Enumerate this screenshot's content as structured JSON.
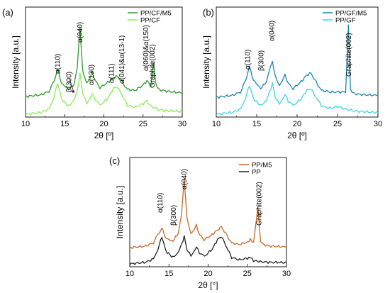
{
  "chart_data": [
    {
      "type": "line",
      "panel_label": "(a)",
      "xlabel": "2θ [º]",
      "ylabel": "Intensity [a.u.]",
      "xlim": [
        10,
        30
      ],
      "xticks": [
        "10",
        "15",
        "20",
        "25",
        "30"
      ],
      "legend_position": "top-right",
      "annotations": [
        "α(110)",
        "β(300)",
        "α(040)",
        "α(130)",
        "α(111)",
        "α(041)&α(13-1)",
        "α(060)&α(150)",
        "Graphite(002)"
      ],
      "series": [
        {
          "name": "PP/CF/M5",
          "color": "#2e9a2e",
          "x": [
            10,
            12,
            13,
            13.6,
            14.1,
            14.6,
            15.5,
            16.2,
            16.6,
            16.95,
            17.3,
            17.8,
            18.2,
            18.5,
            18.9,
            19.5,
            20.5,
            21.2,
            21.7,
            22.2,
            23,
            24,
            25,
            25.5,
            26,
            26.35,
            26.6,
            27,
            28,
            30
          ],
          "y": [
            1.0,
            1.1,
            1.3,
            1.8,
            2.55,
            1.75,
            1.4,
            1.7,
            2.6,
            4.95,
            2.4,
            1.8,
            2.0,
            2.4,
            1.9,
            1.5,
            1.8,
            2.05,
            2.15,
            1.9,
            1.4,
            1.35,
            1.65,
            1.9,
            1.6,
            2.9,
            1.7,
            1.4,
            1.3,
            1.2
          ]
        },
        {
          "name": "PP/CF",
          "color": "#88ee55",
          "x": [
            10,
            12,
            13,
            13.6,
            14.1,
            14.6,
            15.5,
            16.2,
            16.6,
            16.95,
            17.3,
            17.8,
            18.2,
            18.5,
            18.9,
            19.5,
            20.5,
            21.2,
            21.7,
            22.2,
            23,
            24,
            25,
            25.5,
            26,
            27,
            28,
            30
          ],
          "y": [
            0.0,
            0.1,
            0.3,
            0.9,
            1.8,
            0.85,
            0.45,
            0.8,
            1.3,
            2.3,
            1.2,
            0.6,
            0.9,
            1.2,
            0.85,
            0.5,
            0.9,
            1.45,
            1.55,
            1.2,
            0.5,
            0.4,
            0.6,
            0.75,
            0.45,
            0.25,
            0.2,
            0.15
          ]
        }
      ]
    },
    {
      "type": "line",
      "panel_label": "(b)",
      "xlabel": "2θ [º]",
      "ylabel": "Intensity [a.u.]",
      "xlim": [
        10,
        30
      ],
      "xticks": [
        "10",
        "15",
        "20",
        "25",
        "30"
      ],
      "legend_position": "top-right",
      "annotations": [
        "α(110)",
        "β(300)",
        "α(040)",
        "Graphite(002)"
      ],
      "series": [
        {
          "name": "PP/GF/M5",
          "color": "#1a86b0",
          "x": [
            10,
            12,
            13,
            13.6,
            14.1,
            14.6,
            15.5,
            16.2,
            16.6,
            16.95,
            17.3,
            17.8,
            18.2,
            18.5,
            18.9,
            19.5,
            20.5,
            21.2,
            21.7,
            22.2,
            23,
            24,
            25,
            25.5,
            26,
            26.35,
            26.6,
            27,
            28,
            30
          ],
          "y": [
            1.0,
            1.1,
            1.3,
            1.9,
            2.8,
            2.0,
            1.5,
            1.9,
            2.6,
            3.1,
            2.2,
            1.7,
            2.0,
            2.3,
            1.8,
            1.5,
            1.9,
            2.3,
            2.4,
            2.0,
            1.4,
            1.3,
            1.3,
            1.3,
            1.3,
            5.2,
            1.4,
            1.2,
            1.15,
            1.1
          ]
        },
        {
          "name": "PP/GF",
          "color": "#3fd6e0",
          "x": [
            10,
            12,
            13,
            13.6,
            14.1,
            14.6,
            15.5,
            16.2,
            16.6,
            16.95,
            17.3,
            17.8,
            18.2,
            18.5,
            18.9,
            19.5,
            20.5,
            21.2,
            21.7,
            22.2,
            23,
            24,
            25,
            26,
            27,
            28,
            30
          ],
          "y": [
            0.0,
            0.1,
            0.3,
            0.9,
            1.7,
            0.9,
            0.5,
            0.8,
            1.3,
            1.8,
            1.0,
            0.6,
            0.9,
            1.2,
            0.8,
            0.5,
            0.9,
            1.4,
            1.5,
            1.1,
            0.5,
            0.35,
            0.45,
            0.3,
            0.2,
            0.15,
            0.1
          ]
        }
      ]
    },
    {
      "type": "line",
      "panel_label": "(c)",
      "xlabel": "2θ [°]",
      "ylabel": "Intensity [a.u.]",
      "xlim": [
        10,
        30
      ],
      "xticks": [
        "10",
        "15",
        "20",
        "25",
        "30"
      ],
      "legend_position": "top-right",
      "annotations": [
        "α(110)",
        "β(300)",
        "α(040)",
        "Graphite(002)"
      ],
      "series": [
        {
          "name": "PP/M5",
          "color": "#c46a2a",
          "x": [
            10,
            12,
            13,
            13.6,
            14.1,
            14.6,
            15.5,
            16.2,
            16.6,
            16.95,
            17.3,
            17.8,
            18.2,
            18.5,
            18.9,
            19.5,
            20.5,
            21.2,
            21.7,
            22.2,
            23,
            24,
            25,
            25.4,
            25.8,
            26.35,
            26.7,
            27,
            28,
            30
          ],
          "y": [
            1.0,
            1.1,
            1.3,
            1.8,
            2.2,
            1.6,
            1.4,
            1.9,
            3.0,
            5.3,
            2.8,
            1.9,
            2.1,
            2.4,
            1.8,
            1.5,
            1.8,
            2.1,
            2.3,
            1.9,
            1.3,
            1.2,
            1.35,
            1.55,
            1.3,
            3.5,
            1.4,
            1.2,
            1.1,
            1.05
          ]
        },
        {
          "name": "PP",
          "color": "#222222",
          "x": [
            10,
            12,
            13,
            13.6,
            14.1,
            14.6,
            15.5,
            16.2,
            16.6,
            16.95,
            17.3,
            17.8,
            18.2,
            18.5,
            18.9,
            19.5,
            20.5,
            21.2,
            21.7,
            22.2,
            23,
            24,
            25,
            25.4,
            25.8,
            27,
            28,
            30
          ],
          "y": [
            0.0,
            0.1,
            0.3,
            0.9,
            1.7,
            0.8,
            0.4,
            0.7,
            1.2,
            1.7,
            0.9,
            0.5,
            0.8,
            1.1,
            0.7,
            0.45,
            0.9,
            1.5,
            1.7,
            1.2,
            0.4,
            0.25,
            0.35,
            0.45,
            0.2,
            0.12,
            0.1,
            0.08
          ]
        }
      ]
    }
  ]
}
